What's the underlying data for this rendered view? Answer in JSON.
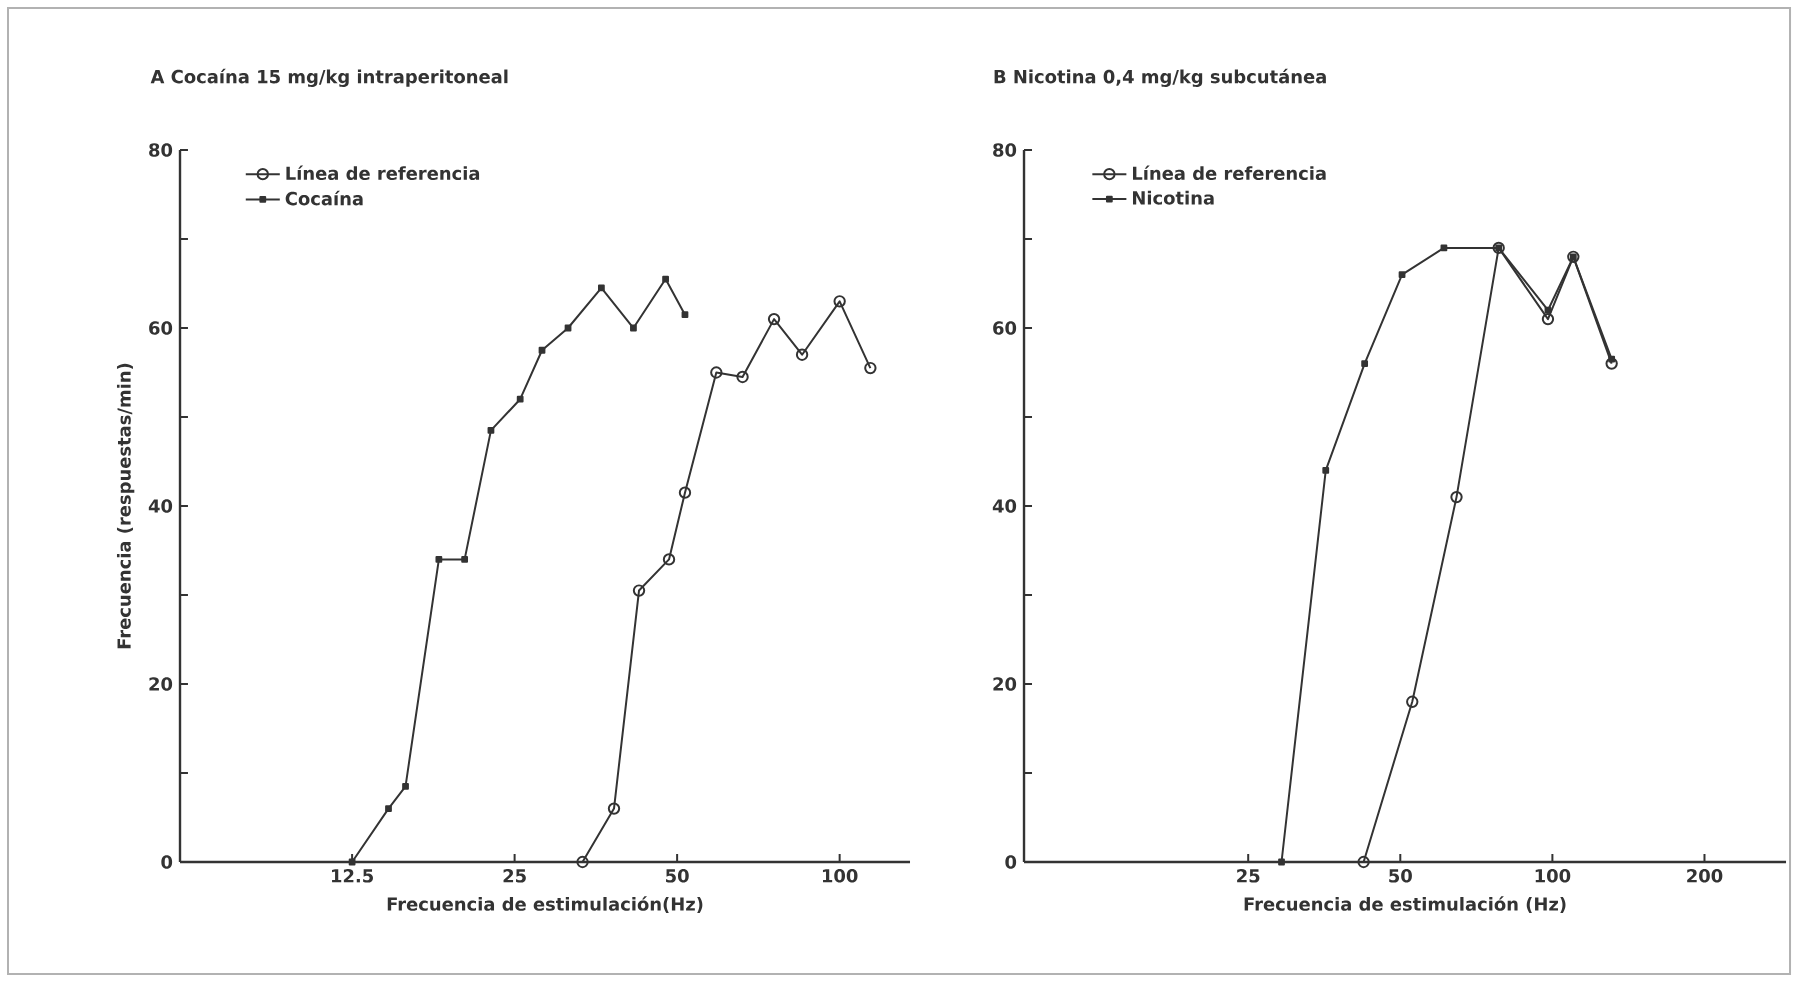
{
  "chart_data": [
    {
      "type": "line",
      "title": "A Cocaína 15 mg/kg intraperitoneal",
      "xlabel": "Frecuencia de estimulación(Hz)",
      "ylabel": "Frecuencia (respuestas/min)",
      "log": "x",
      "legend": "top left",
      "line_style": "solid",
      "xlim": [
        6,
        135
      ],
      "ylim": [
        0,
        80
      ],
      "xticks": [
        12.5,
        25,
        50,
        100
      ],
      "yticks": [
        0,
        {
          "value": 10,
          "label": null
        },
        20,
        {
          "value": 30,
          "label": null
        },
        40,
        {
          "value": 50,
          "label": null
        },
        60,
        {
          "value": 70,
          "label": null
        },
        80
      ],
      "series": [
        {
          "name": "Línea de referencia",
          "color": "#333333",
          "marker": "circle",
          "x": [
            33.4,
            38.2,
            42.5,
            48.3,
            51.7,
            59.1,
            66.1,
            75.6,
            85.2,
            100,
            114
          ],
          "values": [
            0,
            6,
            30.5,
            34,
            41.5,
            55,
            54.5,
            61,
            57,
            63,
            55.5
          ]
        },
        {
          "name": "Cocaína",
          "color": "#333333",
          "marker": "square",
          "x": [
            12.5,
            14.6,
            15.7,
            18.1,
            20.2,
            22.6,
            25.6,
            28.1,
            31.4,
            36.2,
            41.5,
            47.6,
            51.7
          ],
          "values": [
            0,
            6,
            8.5,
            34,
            34,
            48.5,
            52,
            57.5,
            60,
            64.5,
            60,
            65.5,
            61.5
          ]
        }
      ]
    },
    {
      "type": "line",
      "title": "B Nicotina 0,4 mg/kg subcutánea",
      "xlabel": "Frecuencia de estimulación (Hz)",
      "log": "x",
      "legend": "top left",
      "line_style": "solid",
      "xlim": [
        9,
        290
      ],
      "ylim": [
        0,
        80
      ],
      "xticks": [
        25,
        50,
        100,
        200
      ],
      "yticks": [
        0,
        {
          "value": 10,
          "label": null
        },
        20,
        {
          "value": 30,
          "label": null
        },
        40,
        {
          "value": 50,
          "label": null
        },
        60,
        {
          "value": 70,
          "label": null
        },
        80
      ],
      "series": [
        {
          "name": "Línea de referencia",
          "color": "#333333",
          "marker": "circle",
          "x": [
            42.3,
            52.8,
            64.6,
            78.3,
            98,
            110,
            131
          ],
          "values": [
            0,
            18,
            41,
            69,
            61,
            68,
            56
          ]
        },
        {
          "name": "Nicotina",
          "color": "#333333",
          "marker": "square",
          "x": [
            29.1,
            35.6,
            42.5,
            50.4,
            61,
            78.3,
            98,
            110,
            131
          ],
          "values": [
            0,
            44,
            56,
            66,
            69,
            69,
            62,
            68,
            56.5
          ]
        }
      ]
    }
  ]
}
